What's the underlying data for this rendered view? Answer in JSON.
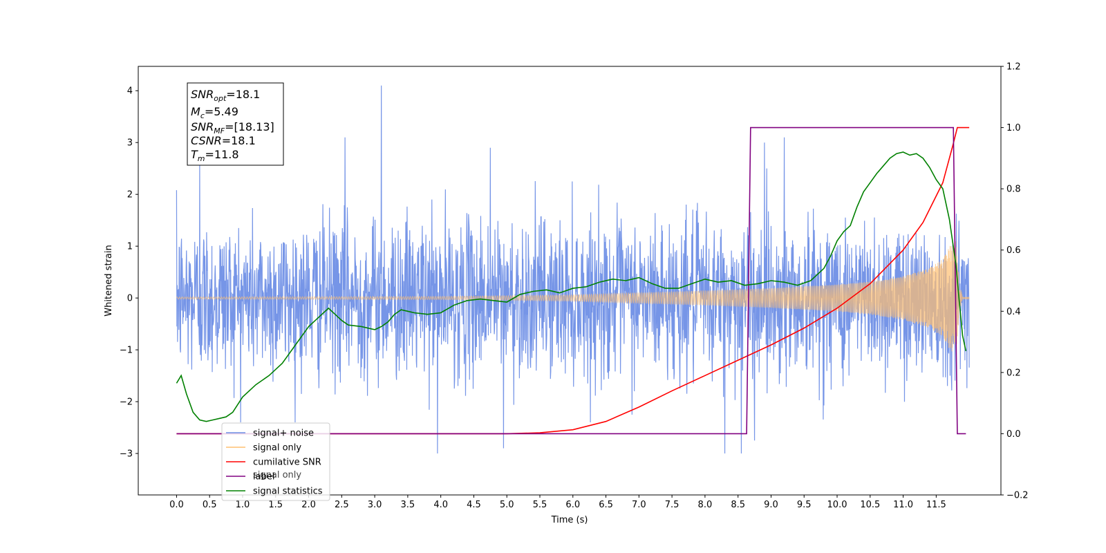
{
  "chart_data": {
    "type": "line",
    "title": "",
    "xlabel": "Time (s)",
    "ylabel": "Whitened strain",
    "y2label": "",
    "xlim": [
      -0.58,
      12.48
    ],
    "ylim": [
      -3.8,
      4.47
    ],
    "y2lim": [
      -0.2,
      1.2
    ],
    "x_ticks": [
      0.0,
      0.5,
      1.0,
      1.5,
      2.0,
      2.5,
      3.0,
      3.5,
      4.0,
      4.5,
      5.0,
      5.5,
      6.0,
      6.5,
      7.0,
      7.5,
      8.0,
      8.5,
      9.0,
      9.5,
      10.0,
      10.5,
      11.0,
      11.5
    ],
    "x_tick_labels": [
      "0.0",
      "0.5",
      "1.0",
      "1.5",
      "2.0",
      "2.5",
      "3.0",
      "3.5",
      "4.0",
      "4.5",
      "5.0",
      "5.5",
      "6.0",
      "6.5",
      "7.0",
      "7.5",
      "8.0",
      "8.5",
      "9.0",
      "9.5",
      "10.0",
      "10.5",
      "11.0",
      "11.5"
    ],
    "y_ticks": [
      -3,
      -2,
      -1,
      0,
      1,
      2,
      3,
      4
    ],
    "y_tick_labels": [
      "−3",
      "−2",
      "−1",
      "0",
      "1",
      "2",
      "3",
      "4"
    ],
    "y2_ticks": [
      -0.2,
      0.0,
      0.2,
      0.4,
      0.6,
      0.8,
      1.0,
      1.2
    ],
    "y2_tick_labels": [
      "−0.2",
      "0.0",
      "0.2",
      "0.4",
      "0.6",
      "0.8",
      "1.0",
      "1.2"
    ],
    "grid": false,
    "legend_position": "lower-left",
    "legend": [
      {
        "label": "signal+ noise",
        "color": "#6f8fe6"
      },
      {
        "label": "signal only",
        "color": "#ffbf70"
      },
      {
        "label": "cumilative SNR",
        "color": "#ff0000"
      },
      {
        "label": "label",
        "color": "#800080"
      },
      {
        "label": "signal statistics",
        "color": "#008000"
      }
    ],
    "hidden_legend_text": "signal only",
    "annotation_lines": [
      {
        "base": "SNR",
        "sub": "opt",
        "rest": "=18.1"
      },
      {
        "base": "M",
        "sub": "c",
        "rest": "=5.49"
      },
      {
        "base": "SNR",
        "sub": "MF",
        "rest": "=[18.13]"
      },
      {
        "base": "CSNR",
        "sub": "",
        "rest": "=18.1"
      },
      {
        "base": "T",
        "sub": "m",
        "rest": "=11.8"
      }
    ],
    "series": [
      {
        "name": "signal+ noise",
        "axis": "left",
        "color": "#6f8fe6",
        "kind": "noise",
        "x_range": [
          0.0,
          12.0
        ],
        "approx_range": [
          -3.0,
          4.1
        ],
        "peaks": [
          [
            3.1,
            4.1
          ],
          [
            0.35,
            2.6
          ],
          [
            2.55,
            3.1
          ],
          [
            4.75,
            2.9
          ],
          [
            8.9,
            3.0
          ],
          [
            9.2,
            3.1
          ],
          [
            3.95,
            -3.0
          ],
          [
            4.95,
            -2.9
          ],
          [
            8.3,
            -3.0
          ],
          [
            8.55,
            -3.0
          ],
          [
            8.75,
            -2.75
          ]
        ]
      },
      {
        "name": "signal only",
        "axis": "left",
        "color": "#ffbf70",
        "kind": "chirp",
        "x_range": [
          0.0,
          12.0
        ],
        "envelope": [
          [
            0.0,
            0.02
          ],
          [
            4.0,
            0.03
          ],
          [
            6.0,
            0.06
          ],
          [
            7.0,
            0.1
          ],
          [
            8.0,
            0.14
          ],
          [
            9.0,
            0.19
          ],
          [
            10.0,
            0.26
          ],
          [
            10.5,
            0.32
          ],
          [
            11.0,
            0.42
          ],
          [
            11.4,
            0.58
          ],
          [
            11.6,
            0.75
          ],
          [
            11.7,
            1.0
          ],
          [
            11.8,
            1.1
          ],
          [
            11.85,
            0.3
          ],
          [
            11.9,
            0.02
          ],
          [
            12.0,
            0.02
          ]
        ]
      },
      {
        "name": "cumilative SNR",
        "axis": "right",
        "color": "#ff0000",
        "x": [
          0.0,
          5.0,
          5.5,
          6.0,
          6.5,
          7.0,
          7.5,
          8.0,
          8.5,
          9.0,
          9.5,
          10.0,
          10.5,
          11.0,
          11.3,
          11.6,
          11.75,
          11.82,
          11.9,
          12.0
        ],
        "values": [
          0.0,
          0.0,
          0.003,
          0.013,
          0.04,
          0.087,
          0.14,
          0.19,
          0.24,
          0.29,
          0.345,
          0.41,
          0.49,
          0.6,
          0.69,
          0.82,
          0.94,
          1.0,
          1.0,
          1.0
        ]
      },
      {
        "name": "label",
        "axis": "right",
        "color": "#800080",
        "x": [
          0.0,
          8.63,
          8.69,
          11.76,
          11.82,
          11.95
        ],
        "values": [
          0.0,
          0.0,
          1.0,
          1.0,
          0.0,
          0.0
        ]
      },
      {
        "name": "signal statistics",
        "axis": "right",
        "color": "#008000",
        "x": [
          0.0,
          0.07,
          0.15,
          0.25,
          0.35,
          0.45,
          0.55,
          0.65,
          0.75,
          0.85,
          1.0,
          1.2,
          1.4,
          1.6,
          1.8,
          2.0,
          2.1,
          2.2,
          2.3,
          2.4,
          2.5,
          2.6,
          2.8,
          3.0,
          3.1,
          3.2,
          3.3,
          3.4,
          3.5,
          3.6,
          3.8,
          4.0,
          4.2,
          4.4,
          4.6,
          4.8,
          5.0,
          5.2,
          5.4,
          5.6,
          5.8,
          6.0,
          6.2,
          6.4,
          6.6,
          6.8,
          7.0,
          7.2,
          7.4,
          7.6,
          7.8,
          8.0,
          8.2,
          8.4,
          8.6,
          8.8,
          9.0,
          9.2,
          9.4,
          9.6,
          9.8,
          9.9,
          10.0,
          10.1,
          10.2,
          10.3,
          10.4,
          10.5,
          10.6,
          10.7,
          10.8,
          10.9,
          11.0,
          11.1,
          11.2,
          11.3,
          11.4,
          11.5,
          11.6,
          11.7,
          11.8,
          11.85,
          11.9,
          11.95
        ],
        "values": [
          0.165,
          0.19,
          0.13,
          0.07,
          0.045,
          0.04,
          0.045,
          0.05,
          0.055,
          0.07,
          0.12,
          0.16,
          0.19,
          0.23,
          0.29,
          0.35,
          0.37,
          0.39,
          0.41,
          0.39,
          0.37,
          0.355,
          0.35,
          0.34,
          0.35,
          0.365,
          0.39,
          0.405,
          0.4,
          0.395,
          0.39,
          0.395,
          0.42,
          0.435,
          0.44,
          0.435,
          0.43,
          0.455,
          0.465,
          0.47,
          0.46,
          0.475,
          0.48,
          0.495,
          0.505,
          0.5,
          0.51,
          0.49,
          0.475,
          0.475,
          0.49,
          0.505,
          0.495,
          0.5,
          0.485,
          0.49,
          0.5,
          0.495,
          0.485,
          0.5,
          0.54,
          0.58,
          0.63,
          0.66,
          0.68,
          0.74,
          0.79,
          0.82,
          0.85,
          0.875,
          0.9,
          0.915,
          0.92,
          0.91,
          0.915,
          0.9,
          0.87,
          0.83,
          0.8,
          0.7,
          0.55,
          0.43,
          0.32,
          0.27
        ]
      }
    ]
  }
}
